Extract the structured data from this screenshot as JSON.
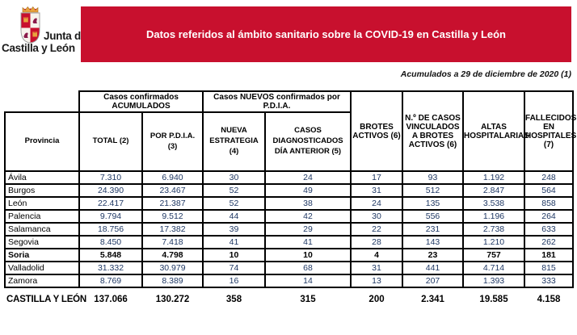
{
  "logo": {
    "line1": "Junta de",
    "line2": "Castilla y León"
  },
  "banner": {
    "title": "Datos referidos al ámbito sanitario sobre la COVID-19 en Castilla y León"
  },
  "note": "Acumulados a 29 de diciembre de 2020 (1)",
  "table": {
    "group_headers": [
      "Casos confirmados ACUMULADOS",
      "Casos NUEVOS confirmados por P.D.I.A."
    ],
    "columns": [
      "Provincia",
      "TOTAL (2)",
      "POR P.D.I.A. (3)",
      "NUEVA ESTRATEGIA (4)",
      "CASOS DIAGNOSTICADOS DÍA ANTERIOR (5)",
      "BROTES ACTIVOS (6)",
      "N.º DE CASOS VINCULADOS A BROTES ACTIVOS (6)",
      "ALTAS HOSPITALARIAS",
      "FALLECIDOS EN HOSPITALES (7)"
    ],
    "rows": [
      {
        "province": "Ávila",
        "values": [
          "7.310",
          "6.940",
          "30",
          "24",
          "17",
          "93",
          "1.192",
          "248"
        ],
        "bold": false
      },
      {
        "province": "Burgos",
        "values": [
          "24.390",
          "23.467",
          "52",
          "49",
          "31",
          "512",
          "2.847",
          "564"
        ],
        "bold": false
      },
      {
        "province": "León",
        "values": [
          "22.417",
          "21.387",
          "52",
          "38",
          "24",
          "135",
          "3.538",
          "858"
        ],
        "bold": false
      },
      {
        "province": "Palencia",
        "values": [
          "9.794",
          "9.512",
          "44",
          "42",
          "30",
          "556",
          "1.196",
          "264"
        ],
        "bold": false
      },
      {
        "province": "Salamanca",
        "values": [
          "18.756",
          "17.382",
          "39",
          "29",
          "22",
          "231",
          "2.738",
          "633"
        ],
        "bold": false
      },
      {
        "province": "Segovia",
        "values": [
          "8.450",
          "7.418",
          "41",
          "41",
          "28",
          "143",
          "1.210",
          "262"
        ],
        "bold": false
      },
      {
        "province": "Soria",
        "values": [
          "5.848",
          "4.798",
          "10",
          "10",
          "4",
          "23",
          "757",
          "181"
        ],
        "bold": true
      },
      {
        "province": "Valladolid",
        "values": [
          "31.332",
          "30.979",
          "74",
          "68",
          "31",
          "441",
          "4.714",
          "815"
        ],
        "bold": false
      },
      {
        "province": "Zamora",
        "values": [
          "8.769",
          "8.389",
          "16",
          "14",
          "13",
          "207",
          "1.393",
          "333"
        ],
        "bold": false
      }
    ],
    "total": {
      "label": "CASTILLA Y LEÓN",
      "values": [
        "137.066",
        "130.272",
        "358",
        "315",
        "200",
        "2.341",
        "19.585",
        "4.158"
      ]
    }
  },
  "colors": {
    "banner_bg": "#c8102e",
    "banner_text": "#ffffff",
    "value_text": "#1f3864",
    "highlight_text": "#000000",
    "border": "#000000"
  }
}
